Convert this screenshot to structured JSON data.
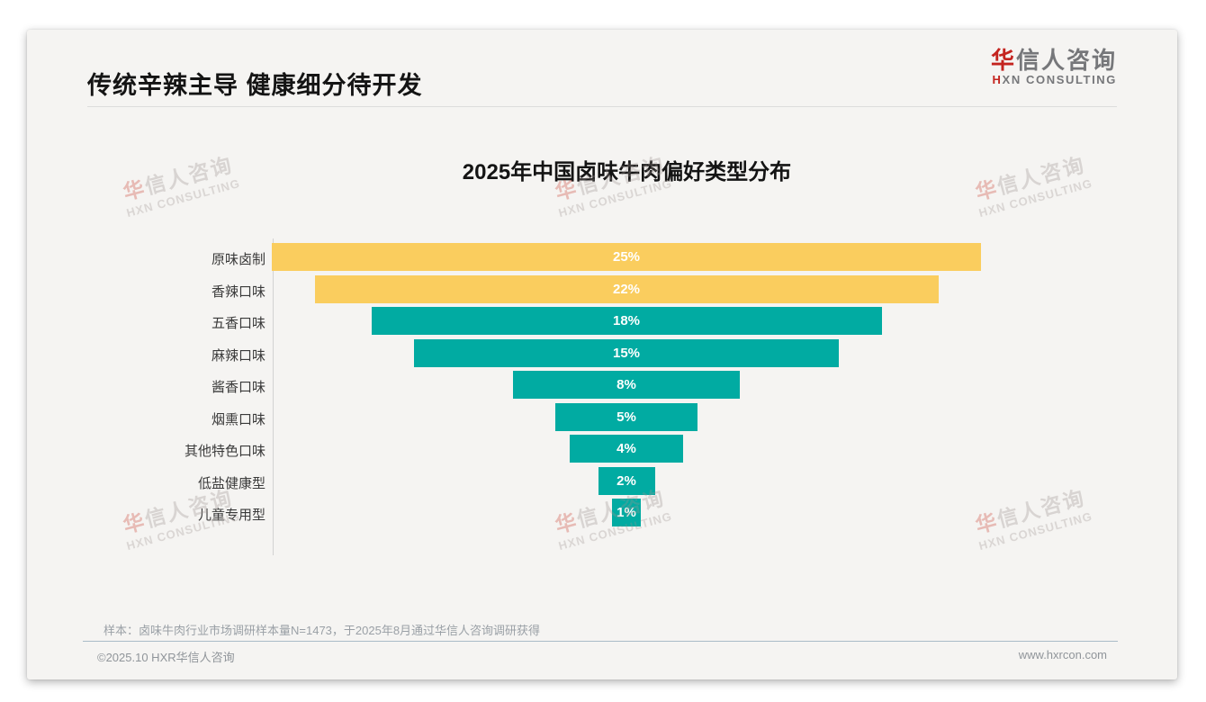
{
  "page": {
    "title": "传统辛辣主导 健康细分待开发",
    "logo": {
      "cn_first": "华",
      "cn_rest": "信人咨询",
      "en_first": "H",
      "en_rest": "XN CONSULTING"
    },
    "watermark": {
      "cn": "华信人咨询",
      "en": "HXN CONSULTING"
    },
    "footnote": "样本：卤味牛肉行业市场调研样本量N=1473，于2025年8月通过华信人咨询调研获得",
    "footer_left": "©2025.10 HXR华信人咨询",
    "footer_right": "www.hxrcon.com"
  },
  "chart_data": {
    "type": "bar",
    "variant": "centered-funnel",
    "title": "2025年中国卤味牛肉偏好类型分布",
    "categories": [
      "原味卤制",
      "香辣口味",
      "五香口味",
      "麻辣口味",
      "酱香口味",
      "烟熏口味",
      "其他特色口味",
      "低盐健康型",
      "儿童专用型"
    ],
    "values": [
      25,
      22,
      18,
      15,
      8,
      5,
      4,
      2,
      1
    ],
    "labels": [
      "25%",
      "22%",
      "18%",
      "15%",
      "8%",
      "5%",
      "4%",
      "2%",
      "1%"
    ],
    "unit": "%",
    "xlim": [
      0,
      25
    ],
    "grid": false,
    "legend": "none",
    "colors": [
      "#facd5e",
      "#facd5e",
      "#01aba2",
      "#01aba2",
      "#01aba2",
      "#01aba2",
      "#01aba2",
      "#01aba2",
      "#01aba2"
    ],
    "value_label_color": "#ffffff",
    "sample_note": "N=1473"
  }
}
